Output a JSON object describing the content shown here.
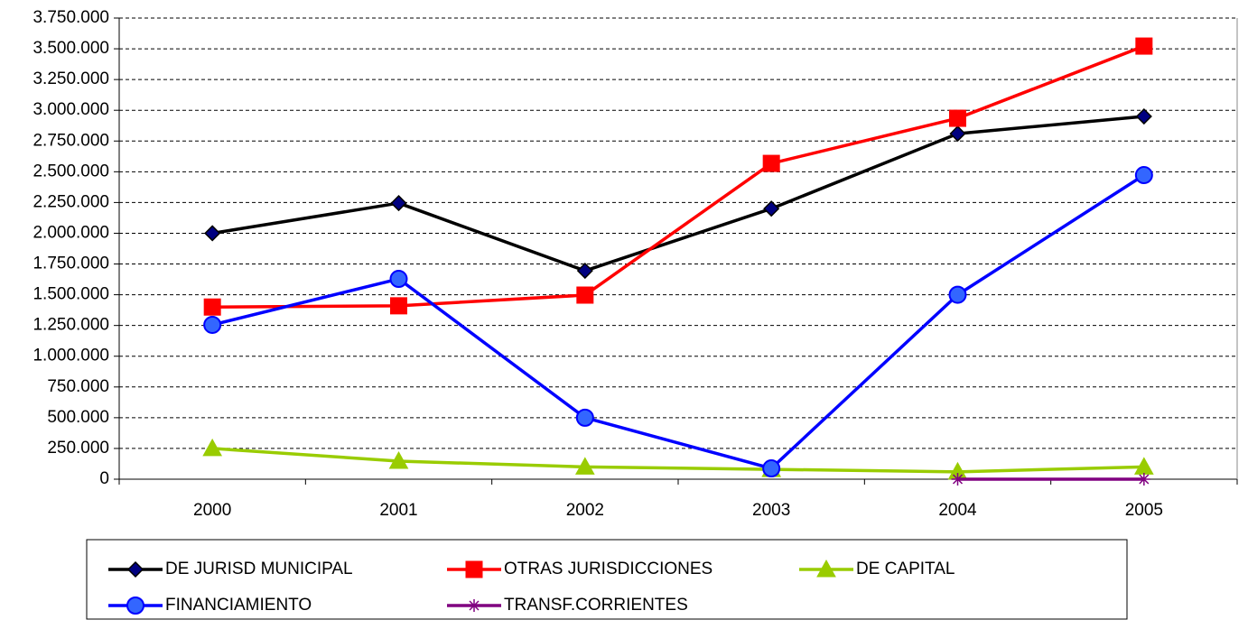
{
  "chart_data": {
    "type": "line",
    "categories": [
      "2000",
      "2001",
      "2002",
      "2003",
      "2004",
      "2005"
    ],
    "series": [
      {
        "name": "DE JURISD MUNICIPAL",
        "color": "#000000",
        "marker": "diamond",
        "values": [
          2000000,
          2245000,
          1695000,
          2200000,
          2810000,
          2950000
        ]
      },
      {
        "name": "OTRAS JURISDICCIONES",
        "color": "#FF0000",
        "marker": "square",
        "values": [
          1400000,
          1410000,
          1497000,
          2568000,
          2935000,
          3522000
        ]
      },
      {
        "name": "DE CAPITAL",
        "color": "#99CC00",
        "marker": "triangle",
        "values": [
          250000,
          147000,
          100000,
          80000,
          60000,
          100000
        ]
      },
      {
        "name": "FINANCIAMIENTO",
        "color": "#0000FF",
        "marker": "circle",
        "values": [
          1255000,
          1629000,
          500000,
          88000,
          1500000,
          2473000
        ]
      },
      {
        "name": "TRANSF.CORRIENTES",
        "color": "#800080",
        "marker": "star",
        "values": [
          null,
          null,
          null,
          null,
          0,
          0
        ]
      }
    ],
    "ylim": [
      0,
      3750000
    ],
    "yticks": [
      0,
      {
        "value": 250000,
        "label": "250.000"
      },
      {
        "value": 500000,
        "label": "500.000"
      },
      {
        "value": 750000,
        "label": "750.000"
      },
      {
        "value": 1000000,
        "label": "1.000.000"
      },
      {
        "value": 1250000,
        "label": "1.250.000"
      },
      {
        "value": 1500000,
        "label": "1.500.000"
      },
      {
        "value": 1750000,
        "label": "1.750.000"
      },
      {
        "value": 2000000,
        "label": "2.000.000"
      },
      {
        "value": 2250000,
        "label": "2.250.000"
      },
      {
        "value": 2500000,
        "label": "2.500.000"
      },
      {
        "value": 2750000,
        "label": "2.750.000"
      },
      {
        "value": 3000000,
        "label": "3.000.000"
      },
      {
        "value": 3250000,
        "label": "3.250.000"
      },
      {
        "value": 3500000,
        "label": "3.500.000"
      },
      {
        "value": 3750000,
        "label": "3.750.000"
      }
    ],
    "grid": true,
    "legend": "bottom"
  }
}
